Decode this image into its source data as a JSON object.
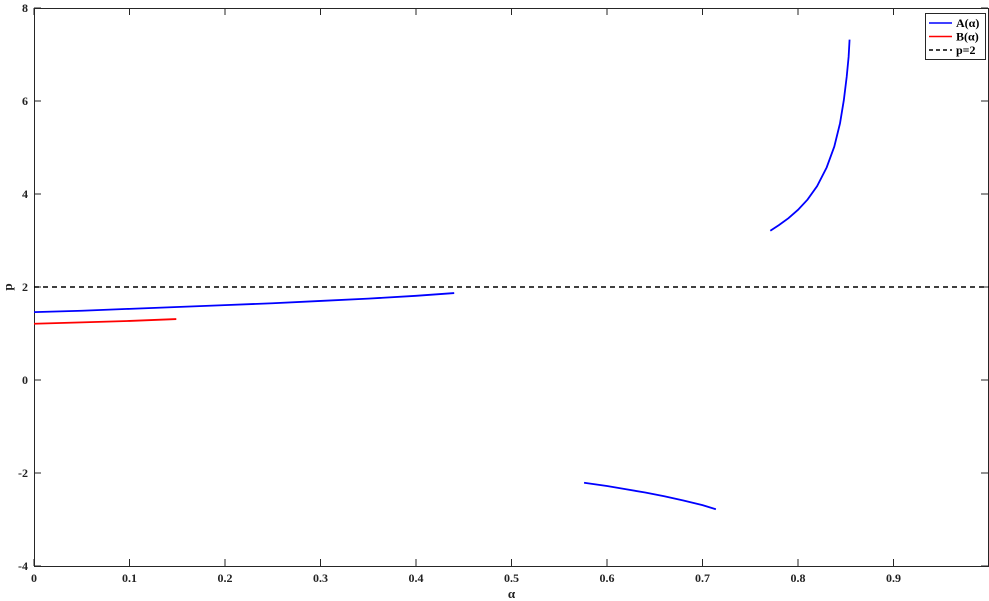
{
  "chart_data": {
    "type": "line",
    "title": "",
    "xlabel": "α",
    "ylabel": "p",
    "xlim": [
      0,
      1
    ],
    "ylim": [
      -4,
      8
    ],
    "xticks": [
      0,
      0.1,
      0.2,
      0.3,
      0.4,
      0.5,
      0.6,
      0.7,
      0.8,
      0.9
    ],
    "xtick_labels": [
      "0",
      "0.1",
      "0.2",
      "0.3",
      "0.4",
      "0.5",
      "0.6",
      "0.7",
      "0.8",
      "0.9"
    ],
    "yticks": [
      -4,
      -2,
      0,
      2,
      4,
      6,
      8
    ],
    "ytick_labels": [
      "-4",
      "-2",
      "0",
      "2",
      "4",
      "6",
      "8"
    ],
    "grid": false,
    "legend_position": "top-right",
    "series": [
      {
        "name": "A(α)",
        "color": "#0000ff",
        "dash": "solid",
        "segments": [
          [
            [
              0,
              1.46
            ],
            [
              0.05,
              1.49
            ],
            [
              0.1,
              1.53
            ],
            [
              0.15,
              1.57
            ],
            [
              0.2,
              1.61
            ],
            [
              0.25,
              1.65
            ],
            [
              0.3,
              1.7
            ],
            [
              0.35,
              1.75
            ],
            [
              0.4,
              1.81
            ],
            [
              0.44,
              1.87
            ]
          ],
          [
            [
              0.576,
              -2.21
            ],
            [
              0.6,
              -2.28
            ],
            [
              0.62,
              -2.35
            ],
            [
              0.64,
              -2.42
            ],
            [
              0.66,
              -2.5
            ],
            [
              0.68,
              -2.59
            ],
            [
              0.7,
              -2.69
            ],
            [
              0.714,
              -2.78
            ]
          ],
          [
            [
              0.771,
              3.21
            ],
            [
              0.78,
              3.33
            ],
            [
              0.79,
              3.48
            ],
            [
              0.8,
              3.66
            ],
            [
              0.81,
              3.88
            ],
            [
              0.82,
              4.17
            ],
            [
              0.83,
              4.57
            ],
            [
              0.838,
              5.02
            ],
            [
              0.844,
              5.52
            ],
            [
              0.848,
              6.02
            ],
            [
              0.851,
              6.52
            ],
            [
              0.853,
              6.95
            ],
            [
              0.854,
              7.32
            ]
          ]
        ]
      },
      {
        "name": "B(α)",
        "color": "#ff0000",
        "dash": "solid",
        "segments": [
          [
            [
              0,
              1.21
            ],
            [
              0.05,
              1.24
            ],
            [
              0.1,
              1.27
            ],
            [
              0.149,
              1.31
            ]
          ]
        ]
      },
      {
        "name": "p=2",
        "color": "#000000",
        "dash": "dashed",
        "segments": [
          [
            [
              0,
              2
            ],
            [
              1,
              2
            ]
          ]
        ]
      }
    ]
  }
}
